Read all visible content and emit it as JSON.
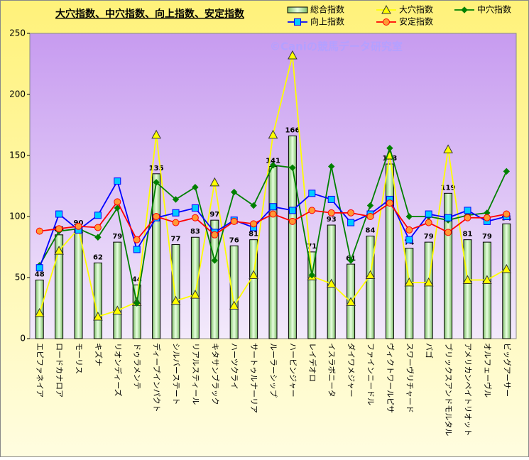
{
  "chart_data": {
    "type": "bar_line",
    "title": "大穴指数、中穴指数、向上指数、安定指数",
    "annotation": "©Caniの競馬データ研究室",
    "categories": [
      "エピファネイア",
      "ロードカナロア",
      "モーリス",
      "キズナ",
      "リオンディーズ",
      "ドゥラメンテ",
      "ディープインパクト",
      "シルバーステート",
      "リアルスティール",
      "キタサンブラック",
      "ハーツクライ",
      "サートゥルナーリア",
      "ルーラーシップ",
      "ハービンジャー",
      "レイデオロ",
      "イスラボニータ",
      "ダイワメジャー",
      "ファインニードル",
      "ヴィクトワールピサ",
      "スワーヴリチャード",
      "バゴ",
      "ブリックスアンドモルタル",
      "アメリカンペイトリオット",
      "オルフェーヴル",
      "ビッグアーサー"
    ],
    "series": [
      {
        "name": "総合指数",
        "kind": "bar",
        "color": "#c8f0c0",
        "values": [
          48,
          85,
          90,
          62,
          79,
          44,
          135,
          77,
          83,
          97,
          76,
          81,
          141,
          166,
          71,
          93,
          61,
          84,
          143,
          74,
          79,
          119,
          81,
          79,
          94
        ]
      },
      {
        "name": "大穴指数",
        "kind": "line",
        "marker": "triangle",
        "color": "#ffff00",
        "values": [
          21,
          72,
          90,
          18,
          23,
          30,
          167,
          31,
          36,
          128,
          27,
          52,
          167,
          232,
          51,
          45,
          30,
          52,
          150,
          46,
          46,
          155,
          48,
          48,
          57
        ]
      },
      {
        "name": "中穴指数",
        "kind": "line",
        "marker": "diamond",
        "color": "#008000",
        "values": [
          60,
          88,
          90,
          83,
          107,
          29,
          128,
          114,
          124,
          64,
          120,
          109,
          142,
          140,
          52,
          141,
          64,
          109,
          156,
          100,
          100,
          97,
          101,
          103,
          137
        ]
      },
      {
        "name": "向上指数",
        "kind": "line",
        "marker": "square",
        "color": "#0000ff",
        "values": [
          58,
          102,
          89,
          101,
          129,
          73,
          99,
          103,
          107,
          87,
          97,
          91,
          108,
          105,
          119,
          114,
          95,
          102,
          114,
          81,
          102,
          99,
          105,
          96,
          100
        ]
      },
      {
        "name": "安定指数",
        "kind": "line",
        "marker": "circle",
        "color": "#ff0000",
        "values": [
          88,
          90,
          92,
          91,
          112,
          81,
          100,
          95,
          99,
          85,
          96,
          94,
          102,
          96,
          105,
          103,
          103,
          100,
          111,
          89,
          95,
          87,
          99,
          99,
          102
        ]
      }
    ],
    "ylim": [
      0,
      250
    ],
    "yticks": [
      0,
      50,
      100,
      150,
      200,
      250
    ],
    "grid": false
  }
}
